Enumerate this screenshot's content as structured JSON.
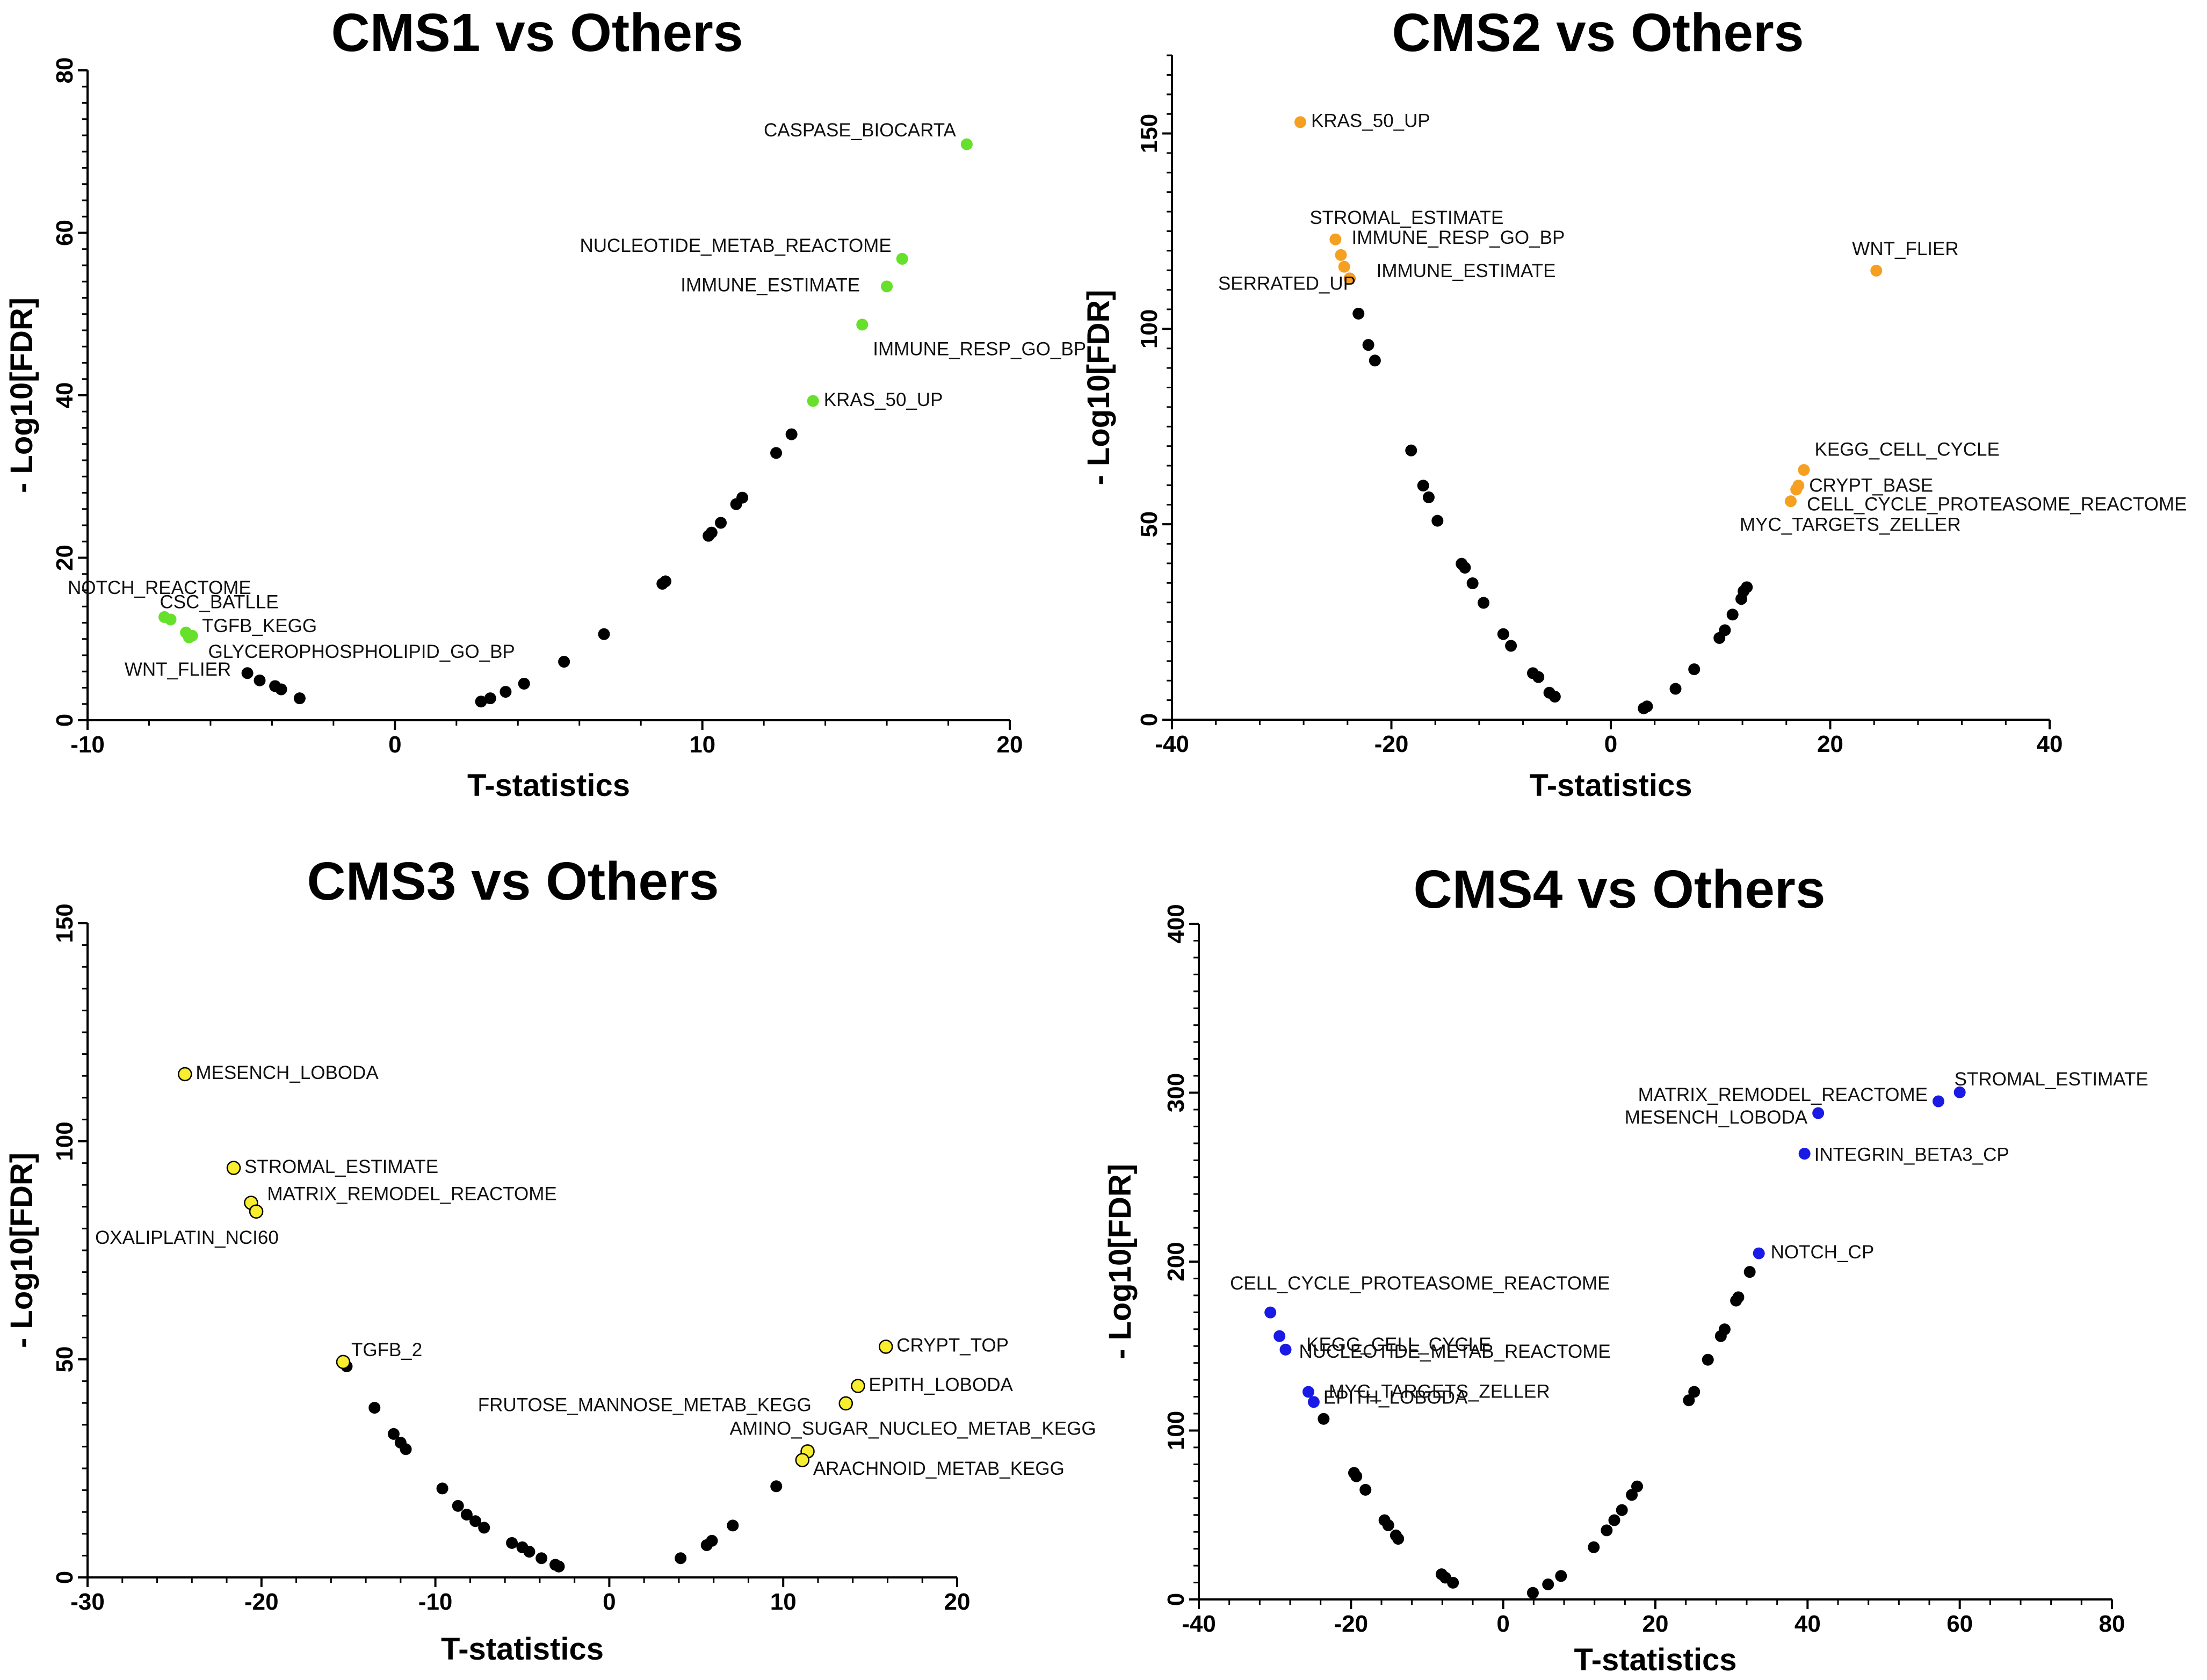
{
  "chart_data": [
    {
      "type": "scatter",
      "title": "CMS1 vs Others",
      "xlabel": "T-statistics",
      "ylabel": "- Log10[FDR]",
      "xlim": [
        -10,
        20
      ],
      "ylim": [
        0,
        80
      ],
      "xticks": [
        -10,
        0,
        10,
        20
      ],
      "yticks": [
        0,
        20,
        40,
        60,
        80
      ],
      "highlight_color": "#66e02a",
      "background_points": [
        [
          -4.8,
          5.8
        ],
        [
          -4.4,
          4.9
        ],
        [
          -3.9,
          4.2
        ],
        [
          -3.7,
          3.8
        ],
        [
          -3.1,
          2.7
        ],
        [
          2.8,
          2.3
        ],
        [
          3.1,
          2.7
        ],
        [
          3.6,
          3.5
        ],
        [
          4.2,
          4.5
        ],
        [
          5.5,
          7.2
        ],
        [
          6.8,
          10.6
        ],
        [
          8.7,
          16.8
        ],
        [
          8.8,
          17.1
        ],
        [
          10.2,
          22.7
        ],
        [
          10.3,
          23.1
        ],
        [
          10.6,
          24.3
        ],
        [
          11.1,
          26.6
        ],
        [
          11.3,
          27.4
        ],
        [
          12.4,
          32.9
        ],
        [
          12.9,
          35.2
        ]
      ],
      "highlight_points": [
        {
          "label": "CASPASE_BIOCARTA",
          "x": 18.6,
          "y": 70.9
        },
        {
          "label": "NUCLEOTIDE_METAB_REACTOME",
          "x": 16.5,
          "y": 56.8
        },
        {
          "label": "IMMUNE_ESTIMATE",
          "x": 16.0,
          "y": 53.4
        },
        {
          "label": "IMMUNE_RESP_GO_BP",
          "x": 15.2,
          "y": 48.7
        },
        {
          "label": "KRAS_50_UP",
          "x": 13.6,
          "y": 39.3
        },
        {
          "label": "NOTCH_REACTOME",
          "x": -7.5,
          "y": 12.7
        },
        {
          "label": "CSC_BATLLE",
          "x": -7.3,
          "y": 12.4
        },
        {
          "label": "TGFB_KEGG",
          "x": -6.8,
          "y": 10.8
        },
        {
          "label": "GLYCEROPHOSPHOLIPID_GO_BP",
          "x": -6.6,
          "y": 10.4
        },
        {
          "label": "WNT_FLIER",
          "x": -6.7,
          "y": 10.2
        }
      ]
    },
    {
      "type": "scatter",
      "title": "CMS2 vs Others",
      "xlabel": "T-statistics",
      "ylabel": "- Log10[FDR]",
      "xlim": [
        -40,
        40
      ],
      "ylim": [
        0,
        170
      ],
      "xticks": [
        -40,
        -20,
        0,
        20,
        40
      ],
      "yticks": [
        0,
        50,
        100,
        150
      ],
      "highlight_color": "#f5a021",
      "background_points": [
        [
          -23.8,
          112.9
        ],
        [
          -23.0,
          103.9
        ],
        [
          -22.1,
          95.9
        ],
        [
          -21.5,
          91.9
        ],
        [
          -18.2,
          68.9
        ],
        [
          -17.1,
          59.9
        ],
        [
          -16.6,
          56.9
        ],
        [
          -15.8,
          50.9
        ],
        [
          -13.6,
          39.9
        ],
        [
          -13.3,
          38.9
        ],
        [
          -12.6,
          34.9
        ],
        [
          -11.6,
          29.9
        ],
        [
          -9.8,
          21.9
        ],
        [
          -9.1,
          18.9
        ],
        [
          -7.1,
          11.9
        ],
        [
          -6.6,
          10.9
        ],
        [
          -5.6,
          6.9
        ],
        [
          -5.1,
          5.9
        ],
        [
          3.0,
          2.9
        ],
        [
          3.3,
          3.4
        ],
        [
          5.9,
          7.9
        ],
        [
          7.6,
          12.9
        ],
        [
          9.9,
          20.9
        ],
        [
          10.4,
          22.9
        ],
        [
          11.1,
          26.9
        ],
        [
          11.9,
          30.9
        ],
        [
          12.1,
          32.9
        ],
        [
          12.4,
          33.9
        ]
      ],
      "highlight_points": [
        {
          "label": "KRAS_50_UP",
          "x": -28.3,
          "y": 152.9
        },
        {
          "label": "STROMAL_ESTIMATE",
          "x": -25.1,
          "y": 122.9
        },
        {
          "label": "IMMUNE_RESP_GO_BP",
          "x": -24.6,
          "y": 118.9
        },
        {
          "label": "IMMUNE_ESTIMATE",
          "x": -24.3,
          "y": 115.9
        },
        {
          "label": "SERRATED_UP",
          "x": -23.8,
          "y": 112.9
        },
        {
          "label": "WNT_FLIER",
          "x": 24.2,
          "y": 114.9
        },
        {
          "label": "KEGG_CELL_CYCLE",
          "x": 17.6,
          "y": 63.9
        },
        {
          "label": "CRYPT_BASE",
          "x": 17.1,
          "y": 59.9
        },
        {
          "label": "CELL_CYCLE_PROTEASOME_REACTOME",
          "x": 16.9,
          "y": 58.9
        },
        {
          "label": "MYC_TARGETS_ZELLER",
          "x": 16.4,
          "y": 55.9
        }
      ]
    },
    {
      "type": "scatter",
      "title": "CMS3 vs Others",
      "xlabel": "T-statistics",
      "ylabel": "- Log10[FDR]",
      "xlim": [
        -30,
        20
      ],
      "ylim": [
        0,
        150
      ],
      "xticks": [
        -30,
        -20,
        -10,
        0,
        10,
        20
      ],
      "yticks": [
        0,
        50,
        100,
        150
      ],
      "highlight_color": "#f8ee2f",
      "background_points": [
        [
          -15.1,
          48.4
        ],
        [
          -13.5,
          38.9
        ],
        [
          -12.4,
          32.9
        ],
        [
          -12.0,
          30.9
        ],
        [
          -11.7,
          29.4
        ],
        [
          -9.6,
          20.4
        ],
        [
          -8.7,
          16.4
        ],
        [
          -8.2,
          14.4
        ],
        [
          -7.7,
          12.9
        ],
        [
          -7.2,
          11.4
        ],
        [
          -5.6,
          7.9
        ],
        [
          -5.0,
          6.9
        ],
        [
          -4.6,
          5.9
        ],
        [
          -3.9,
          4.4
        ],
        [
          -3.1,
          2.9
        ],
        [
          -2.9,
          2.5
        ],
        [
          4.1,
          4.4
        ],
        [
          5.6,
          7.4
        ],
        [
          5.9,
          8.4
        ],
        [
          7.1,
          11.9
        ],
        [
          9.6,
          20.9
        ]
      ],
      "highlight_points": [
        {
          "label": "MESENCH_LOBODA",
          "x": -24.4,
          "y": 115.4
        },
        {
          "label": "STROMAL_ESTIMATE",
          "x": -21.6,
          "y": 93.9
        },
        {
          "label": "MATRIX_REMODEL_REACTOME",
          "x": -20.6,
          "y": 85.9
        },
        {
          "label": "OXALIPLATIN_NCI60",
          "x": -20.3,
          "y": 83.9
        },
        {
          "label": "TGFB_2",
          "x": -15.3,
          "y": 49.4
        },
        {
          "label": "CRYPT_TOP",
          "x": 15.9,
          "y": 52.9
        },
        {
          "label": "EPITH_LOBODA",
          "x": 14.3,
          "y": 43.9
        },
        {
          "label": "FRUTOSE_MANNOSE_METAB_KEGG",
          "x": 13.6,
          "y": 39.9
        },
        {
          "label": "AMINO_SUGAR_NUCLEO_METAB_KEGG",
          "x": 11.4,
          "y": 28.9
        },
        {
          "label": "ARACHNOID_METAB_KEGG",
          "x": 11.1,
          "y": 26.9
        }
      ]
    },
    {
      "type": "scatter",
      "title": "CMS4 vs Others",
      "xlabel": "T-statistics",
      "ylabel": "- Log10[FDR]",
      "xlim": [
        -40,
        80
      ],
      "ylim": [
        0,
        400
      ],
      "xticks": [
        -40,
        -20,
        0,
        20,
        40,
        60,
        80
      ],
      "yticks": [
        0,
        100,
        200,
        300,
        400
      ],
      "highlight_color": "#1a1ae6",
      "background_points": [
        [
          -23.6,
          106.9
        ],
        [
          -19.6,
          74.9
        ],
        [
          -19.3,
          72.9
        ],
        [
          -18.1,
          64.9
        ],
        [
          -15.6,
          46.9
        ],
        [
          -15.1,
          43.9
        ],
        [
          -14.1,
          37.9
        ],
        [
          -13.8,
          35.9
        ],
        [
          -8.1,
          14.9
        ],
        [
          -7.6,
          12.9
        ],
        [
          -6.6,
          9.9
        ],
        [
          3.9,
          3.9
        ],
        [
          5.9,
          8.9
        ],
        [
          7.6,
          13.9
        ],
        [
          11.9,
          30.9
        ],
        [
          13.6,
          40.9
        ],
        [
          14.6,
          46.9
        ],
        [
          15.6,
          52.9
        ],
        [
          16.9,
          61.9
        ],
        [
          17.6,
          66.9
        ],
        [
          24.4,
          117.9
        ],
        [
          25.1,
          122.9
        ],
        [
          26.9,
          141.9
        ],
        [
          28.6,
          155.9
        ],
        [
          29.1,
          159.9
        ],
        [
          30.6,
          176.9
        ],
        [
          30.9,
          178.9
        ],
        [
          32.4,
          193.9
        ]
      ],
      "highlight_points": [
        {
          "label": "STROMAL_ESTIMATE",
          "x": 60.0,
          "y": 300.2
        },
        {
          "label": "MATRIX_REMODEL_REACTOME",
          "x": 57.2,
          "y": 294.9
        },
        {
          "label": "MESENCH_LOBODA",
          "x": 41.4,
          "y": 287.9
        },
        {
          "label": "INTEGRIN_BETA3_CP",
          "x": 39.6,
          "y": 263.9
        },
        {
          "label": "NOTCH_CP",
          "x": 33.6,
          "y": 204.9
        },
        {
          "label": "CELL_CYCLE_PROTEASOME_REACTOME",
          "x": -30.6,
          "y": 169.9
        },
        {
          "label": "KEGG_CELL_CYCLE",
          "x": -29.4,
          "y": 155.9
        },
        {
          "label": "NUCLEOTIDE_METAB_REACTOME",
          "x": -28.6,
          "y": 147.9
        },
        {
          "label": "MYC_TARGETS_ZELLER",
          "x": -25.6,
          "y": 122.9
        },
        {
          "label": "EPITH_LOBODA",
          "x": -24.9,
          "y": 116.9
        }
      ]
    }
  ]
}
